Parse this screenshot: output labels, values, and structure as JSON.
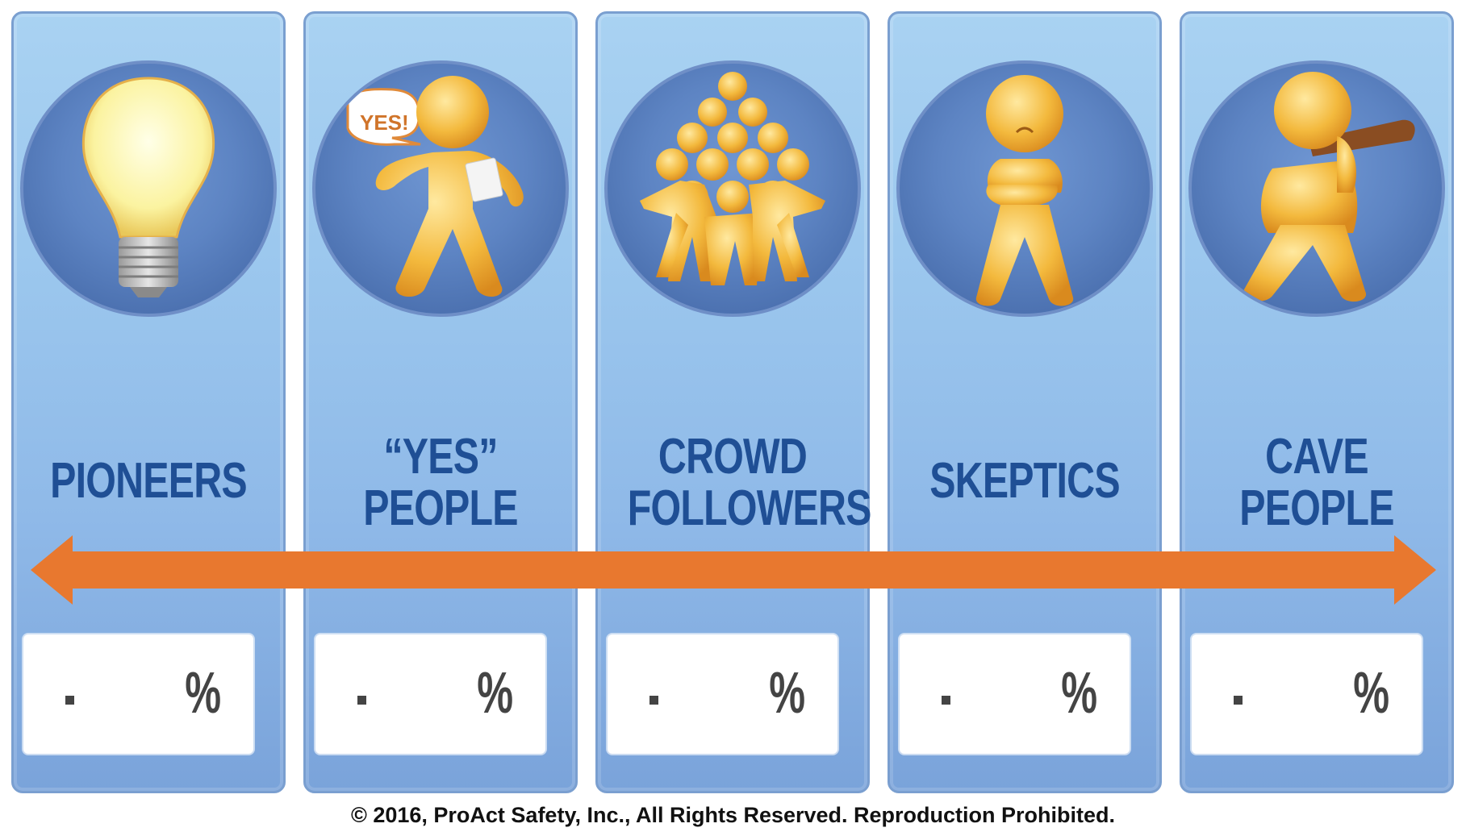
{
  "categories": [
    {
      "id": "pioneers",
      "lines": [
        "PIONEERS"
      ],
      "icon": "lightbulb-icon",
      "value": ".",
      "unit": "%"
    },
    {
      "id": "yes-people",
      "lines": [
        "“YES”",
        "PEOPLE"
      ],
      "icon": "yes-person-icon",
      "bubble": "YES!",
      "value": ".",
      "unit": "%"
    },
    {
      "id": "crowd-followers",
      "lines": [
        "CROWD",
        "FOLLOWERS"
      ],
      "icon": "crowd-pyramid-icon",
      "value": ".",
      "unit": "%"
    },
    {
      "id": "skeptics",
      "lines": [
        "SKEPTICS"
      ],
      "icon": "skeptic-person-icon",
      "value": ".",
      "unit": "%"
    },
    {
      "id": "cave-people",
      "lines": [
        "CAVE",
        "PEOPLE"
      ],
      "icon": "caveman-icon",
      "value": ".",
      "unit": "%"
    }
  ],
  "arrow": {
    "icon": "double-headed-arrow-icon",
    "color": "#e8782f"
  },
  "colors": {
    "label": "#1f4f95",
    "figure": "#f3b93d",
    "panel": "#9cc8ee"
  },
  "footer": "© 2016, ProAct Safety, Inc., All Rights Reserved. Reproduction Prohibited."
}
